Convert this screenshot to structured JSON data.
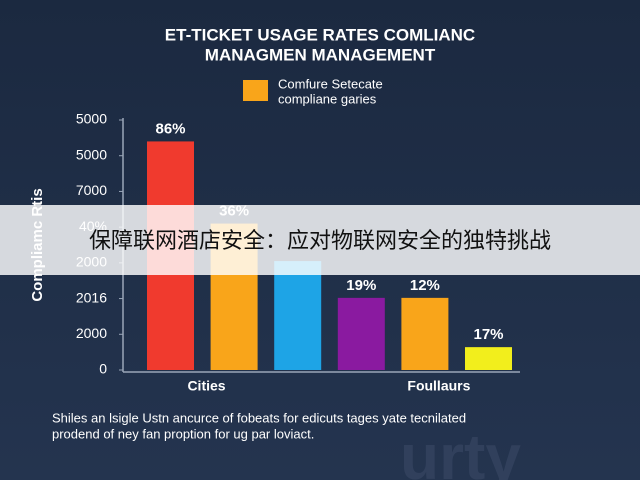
{
  "chart_data": {
    "type": "bar",
    "title_lines": [
      "ET-TICKET USAGE RATES COMLIANC",
      "MANAGMEN MANAGEMENT"
    ],
    "legend_lines": [
      "Comfure Setecate",
      "compliane garies"
    ],
    "legend_color": "#f9a51a",
    "ylabel": "Compliamc Rtis",
    "categories": [
      "Cities",
      null,
      null,
      null,
      "Foullaurs",
      null
    ],
    "values": [
      6.4,
      4.1,
      3.05,
      2.02,
      2.02,
      0.64
    ],
    "colors": [
      "#f03a2e",
      "#f9a51a",
      "#1ea4e6",
      "#8a1aa0",
      "#f9a51a",
      "#f2ee1c"
    ],
    "bar_labels": [
      "86%",
      "36%",
      null,
      "19%",
      "12%",
      "17%"
    ],
    "ylim": [
      0,
      7
    ],
    "yticks": [
      {
        "value": 0,
        "label": "0"
      },
      {
        "value": 1,
        "label": "2000"
      },
      {
        "value": 2,
        "label": "2016"
      },
      {
        "value": 3,
        "label": "2000"
      },
      {
        "value": 4,
        "label": "40%"
      },
      {
        "value": 5,
        "label": "7000"
      },
      {
        "value": 6,
        "label": "5000"
      },
      {
        "value": 7,
        "label": "5000"
      }
    ]
  },
  "footnote_lines": [
    "Shiles an lsigle Ustn ancurce of fobeats for edicuts tages yate tecnilated",
    "prodend of ney fan proption for ug par loviact."
  ],
  "banner": "保障联网酒店安全：应对物联网安全的独特挑战",
  "watermark": "urty"
}
